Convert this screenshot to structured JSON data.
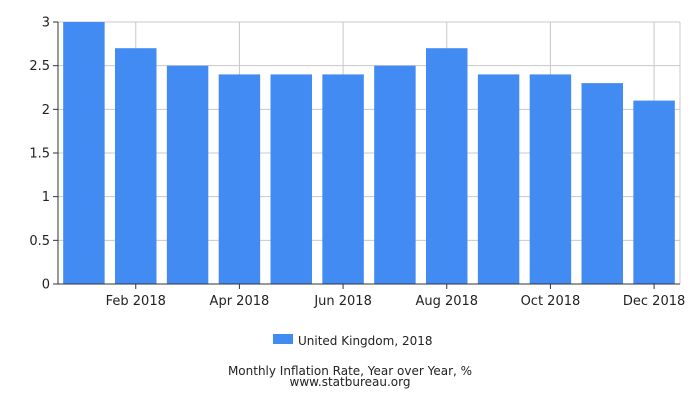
{
  "chart_data": {
    "type": "bar",
    "categories": [
      "Jan 2018",
      "Feb 2018",
      "Mar 2018",
      "Apr 2018",
      "May 2018",
      "Jun 2018",
      "Jul 2018",
      "Aug 2018",
      "Sep 2018",
      "Oct 2018",
      "Nov 2018",
      "Dec 2018"
    ],
    "x_tick_labels": [
      "Feb 2018",
      "Apr 2018",
      "Jun 2018",
      "Aug 2018",
      "Oct 2018",
      "Dec 2018"
    ],
    "series": [
      {
        "name": "United Kingdom, 2018",
        "values": [
          3.0,
          2.7,
          2.5,
          2.4,
          2.4,
          2.4,
          2.5,
          2.7,
          2.4,
          2.4,
          2.3,
          2.1
        ]
      }
    ],
    "y_ticks": [
      "0",
      "0.5",
      "1",
      "1.5",
      "2",
      "2.5",
      "3"
    ],
    "ylim": [
      0,
      3
    ],
    "grid": true,
    "legend_position": "bottom",
    "title": "Monthly Inflation Rate, Year over Year, %",
    "subtitle": "www.statbureau.org",
    "bar_color": "#428bf2"
  }
}
